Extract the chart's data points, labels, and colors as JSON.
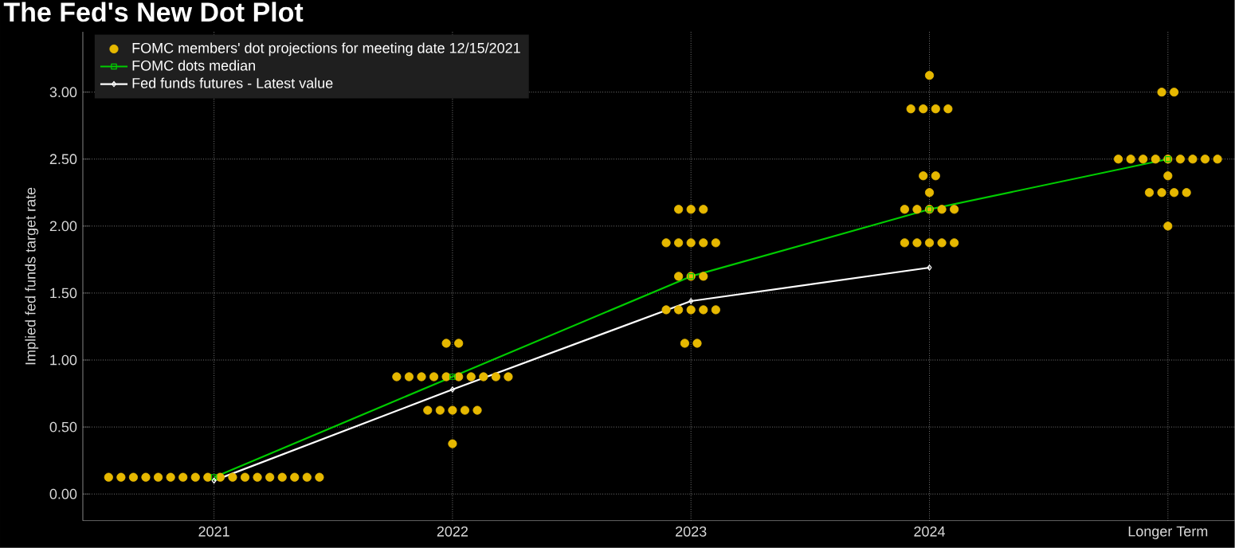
{
  "chart_data": {
    "type": "scatter",
    "title": "The Fed's New Dot Plot",
    "ylabel": "Implied fed funds target rate",
    "categories": [
      "2021",
      "2022",
      "2023",
      "2024",
      "Longer Term"
    ],
    "ylim": [
      -0.2,
      3.45
    ],
    "yticks": [
      {
        "value": 0,
        "label": "0.00"
      },
      {
        "value": 0.5,
        "label": "0.50"
      },
      {
        "value": 1,
        "label": "1.00"
      },
      {
        "value": 1.5,
        "label": "1.50"
      },
      {
        "value": 2,
        "label": "2.00"
      },
      {
        "value": 2.5,
        "label": "2.50"
      },
      {
        "value": 3,
        "label": "3.00"
      }
    ],
    "grid": true,
    "legend": "top left",
    "series": [
      {
        "name": "FOMC members' dot projections for meeting date 12/15/2021",
        "color": "#e6b800",
        "marker": "circle",
        "values": [
          0.125,
          1.125,
          2.125,
          3.125,
          3.0
        ]
      },
      {
        "color": "#e6b800",
        "marker": "circle",
        "values": [
          0.125,
          1.125,
          2.125,
          2.875,
          3.0
        ]
      },
      {
        "color": "#e6b800",
        "marker": "circle",
        "values": [
          0.125,
          0.875,
          2.125,
          2.875,
          2.5
        ]
      },
      {
        "color": "#e6b800",
        "marker": "circle",
        "values": [
          0.125,
          0.875,
          1.875,
          2.875,
          2.5
        ]
      },
      {
        "color": "#e6b800",
        "marker": "circle",
        "values": [
          0.125,
          0.875,
          1.875,
          2.875,
          2.5
        ]
      },
      {
        "color": "#e6b800",
        "marker": "circle",
        "values": [
          0.125,
          0.875,
          1.875,
          2.375,
          2.5
        ]
      },
      {
        "color": "#e6b800",
        "marker": "circle",
        "values": [
          0.125,
          0.875,
          1.875,
          2.375,
          2.5
        ]
      },
      {
        "color": "#e6b800",
        "marker": "circle",
        "values": [
          0.125,
          0.875,
          1.875,
          2.25,
          2.5
        ]
      },
      {
        "color": "#e6b800",
        "marker": "circle",
        "values": [
          0.125,
          0.875,
          1.625,
          2.125,
          2.5
        ]
      },
      {
        "color": "#e6b800",
        "marker": "circle",
        "values": [
          0.125,
          0.875,
          1.625,
          2.125,
          2.5
        ]
      },
      {
        "color": "#e6b800",
        "marker": "circle",
        "values": [
          0.125,
          0.875,
          1.625,
          2.125,
          2.5
        ]
      },
      {
        "color": "#e6b800",
        "marker": "circle",
        "values": [
          0.125,
          0.875,
          1.375,
          2.125,
          2.375
        ]
      },
      {
        "color": "#e6b800",
        "marker": "circle",
        "values": [
          0.125,
          0.625,
          1.375,
          2.125,
          2.25
        ]
      },
      {
        "color": "#e6b800",
        "marker": "circle",
        "values": [
          0.125,
          0.625,
          1.375,
          1.875,
          2.25
        ]
      },
      {
        "color": "#e6b800",
        "marker": "circle",
        "values": [
          0.125,
          0.625,
          1.375,
          1.875,
          2.25
        ]
      },
      {
        "color": "#e6b800",
        "marker": "circle",
        "values": [
          0.125,
          0.625,
          1.375,
          1.875,
          2.25
        ]
      },
      {
        "color": "#e6b800",
        "marker": "circle",
        "values": [
          0.125,
          0.625,
          1.125,
          1.875,
          2.0
        ]
      },
      {
        "color": "#e6b800",
        "marker": "circle",
        "values": [
          0.125,
          0.375,
          1.125,
          1.875,
          null
        ]
      },
      {
        "name": "FOMC dots median",
        "type": "line",
        "color": "#00cc00",
        "marker": "square",
        "line_style": "solid",
        "values": [
          0.125,
          0.875,
          1.625,
          2.125,
          2.5
        ]
      },
      {
        "name": "Fed funds futures - Latest value",
        "type": "line",
        "color": "#ffffff",
        "marker": "diamond",
        "line_style": "solid",
        "values": [
          0.1,
          0.78,
          1.44,
          1.69,
          null
        ]
      }
    ]
  }
}
